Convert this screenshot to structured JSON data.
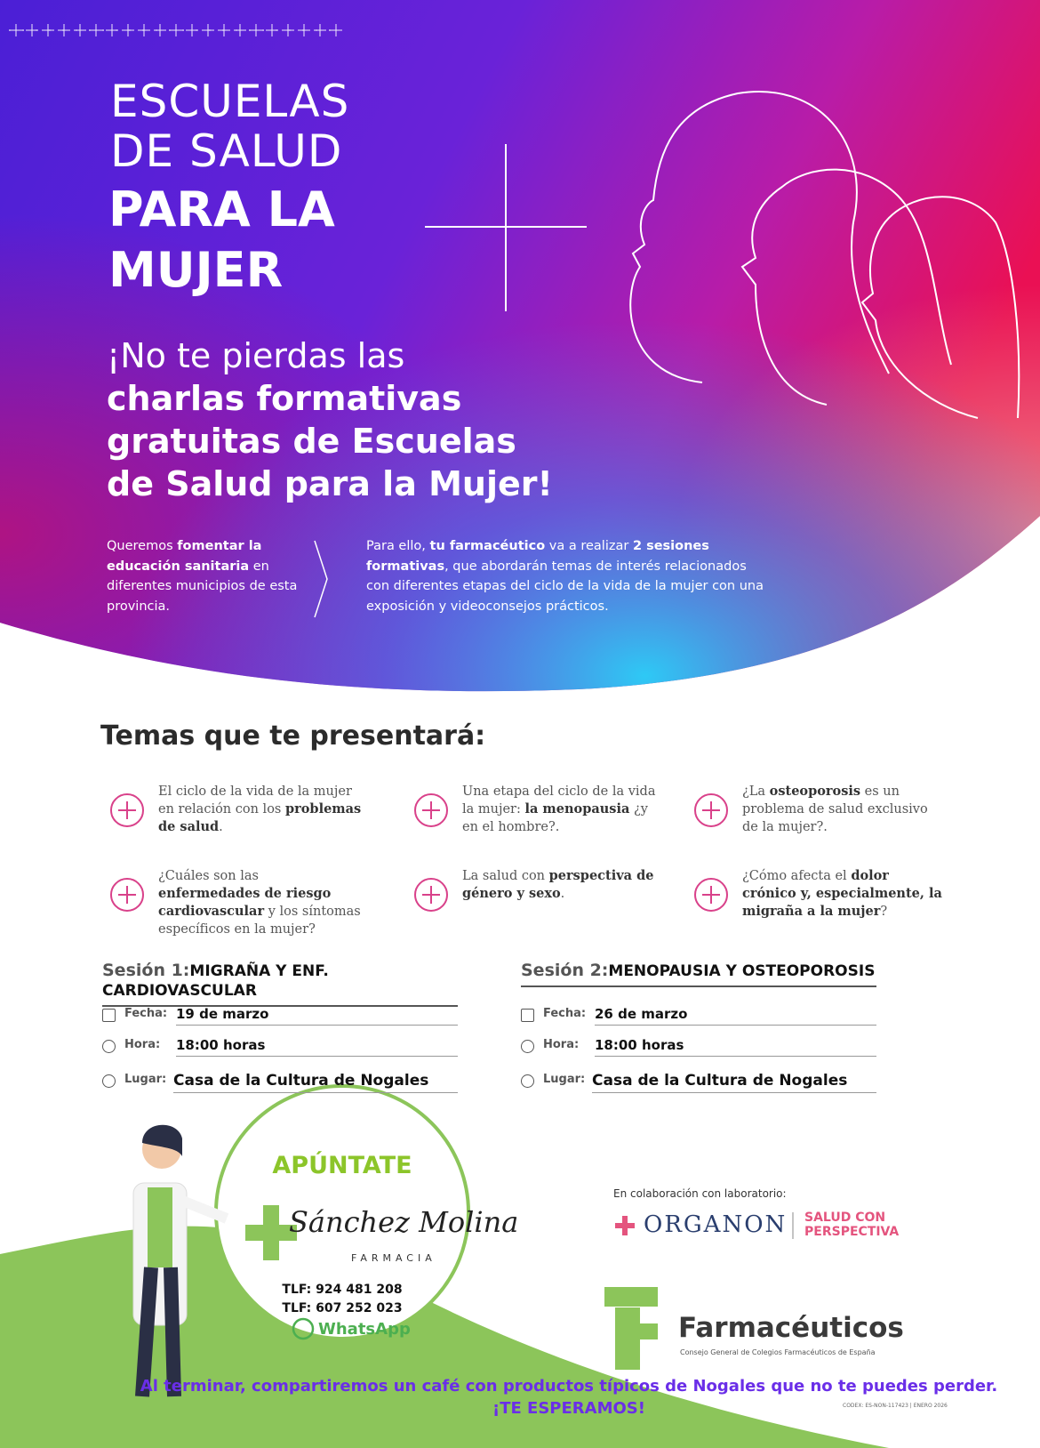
{
  "header": {
    "title_lines": [
      "ESCUELAS",
      "DE SALUD",
      "PARA LA",
      "MUJER"
    ],
    "headline": [
      "¡No te pierdas las",
      "charlas formativas",
      "gratuitas de Escuelas",
      "de Salud para la Mujer!"
    ]
  },
  "intro": {
    "left": [
      "Queremos ",
      "fomentar la educación sanitaria",
      " en diferentes municipios de esta provincia."
    ],
    "right": [
      "Para ello, ",
      "tu farmacéutico",
      " va a realizar ",
      "2 sesiones formativas",
      ", que abordarán temas de interés relacionados con diferentes etapas del ciclo de la vida de la mujer con una exposición y videoconsejos prácticos."
    ]
  },
  "topics": {
    "title": "Temas que te presentará:",
    "items": [
      [
        "El ciclo de la vida de la mujer en relación con los ",
        "problemas de salud",
        "."
      ],
      [
        "Una etapa del ciclo de la vida la mujer: ",
        "la menopausia",
        " ¿y en el hombre?."
      ],
      [
        "¿La ",
        "osteoporosis",
        " es un problema de salud exclusivo de la mujer?."
      ],
      [
        "¿Cuáles son las ",
        "enfermedades de riesgo cardiovascular",
        " y los síntomas específicos en la mujer?"
      ],
      [
        "La salud con ",
        "perspectiva de género y sexo",
        "."
      ],
      [
        "¿Cómo afecta el ",
        "dolor crónico y, especialmente, la migraña a la mujer",
        "?"
      ]
    ]
  },
  "sessions": [
    {
      "label": "Sesión 1:",
      "topic": "MIGRAÑA Y ENF. CARDIOVASCULAR",
      "rows": [
        {
          "label": "Fecha:",
          "value": "19 de marzo"
        },
        {
          "label": "Hora:",
          "value": "18:00 horas"
        },
        {
          "label": "Lugar:",
          "value": "Casa de la Cultura de Nogales"
        }
      ]
    },
    {
      "label": "Sesión 2:",
      "topic": "MENOPAUSIA Y OSTEOPOROSIS",
      "rows": [
        {
          "label": "Fecha:",
          "value": "26 de marzo"
        },
        {
          "label": "Hora:",
          "value": "18:00 horas"
        },
        {
          "label": "Lugar:",
          "value": "Casa de la Cultura de Nogales"
        }
      ]
    }
  ],
  "cta": {
    "title": "APÚNTATE",
    "brand": "Sánchez Molina",
    "brand_sub": "FARMACIA",
    "phones": [
      "TLF: 924 481 208",
      "TLF: 607 252 023"
    ],
    "whatsapp": "WhatsApp"
  },
  "collab": {
    "label": "En colaboración con laboratorio:",
    "lab": "ORGANON",
    "tagline": [
      "SALUD CON",
      "PERSPECTIVA"
    ]
  },
  "council": {
    "name": "Farmacéuticos",
    "sub": "Consejo General de Colegios Farmacéuticos de España"
  },
  "footer": {
    "note": "Al terminar, compartiremos un café con productos típicos de Nogales que no te puedes perder.",
    "closing": "¡TE ESPERAMOS!",
    "code": "CODEX: ES-NON-117423 | ENERO 2026"
  }
}
